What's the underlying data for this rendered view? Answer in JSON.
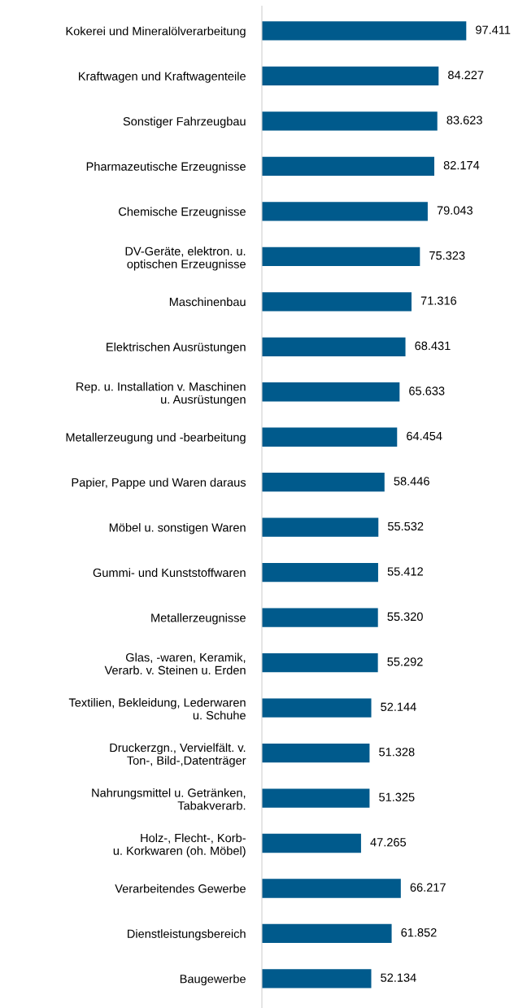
{
  "chart_data": {
    "type": "bar",
    "orientation": "horizontal",
    "categories": [
      "Kokerei und Mineralölverarbeitung",
      "Kraftwagen und Kraftwagenteile",
      "Sonstiger Fahrzeugbau",
      "Pharmazeutische Erzeugnisse",
      "Chemische Erzeugnisse",
      "DV-Geräte, elektron. u.\noptischen Erzeugnisse",
      "Maschinenbau",
      "Elektrischen Ausrüstungen",
      "Rep. u. Installation v. Maschinen\nu. Ausrüstungen",
      "Metallerzeugung und -bearbeitung",
      "Papier, Pappe und Waren daraus",
      "Möbel u. sonstigen Waren",
      "Gummi- und Kunststoffwaren",
      "Metallerzeugnisse",
      "Glas, -waren, Keramik,\nVerarb. v. Steinen u. Erden",
      "Textilien, Bekleidung, Lederwaren\nu. Schuhe",
      "Druckerzgn., Vervielfält. v.\nTon-, Bild-,Datenträger",
      "Nahrungsmittel u. Getränken,\nTabakverarb.",
      "Holz-, Flecht-, Korb-\nu. Korkwaren (oh. Möbel)",
      "Verarbeitendes Gewerbe",
      "Dienstleistungsbereich",
      "Baugewerbe"
    ],
    "values": [
      97411,
      84227,
      83623,
      82174,
      79043,
      75323,
      71316,
      68431,
      65633,
      64454,
      58446,
      55532,
      55412,
      55320,
      55292,
      52144,
      51328,
      51325,
      47265,
      66217,
      61852,
      52134
    ],
    "value_labels": [
      "97.411",
      "84.227",
      "83.623",
      "82.174",
      "79.043",
      "75.323",
      "71.316",
      "68.431",
      "65.633",
      "64.454",
      "58.446",
      "55.532",
      "55.412",
      "55.320",
      "55.292",
      "52.144",
      "51.328",
      "51.325",
      "47.265",
      "66.217",
      "61.852",
      "52.134"
    ],
    "color": "#005a8c",
    "tick_labels": "y",
    "grid": false,
    "legend": false
  }
}
